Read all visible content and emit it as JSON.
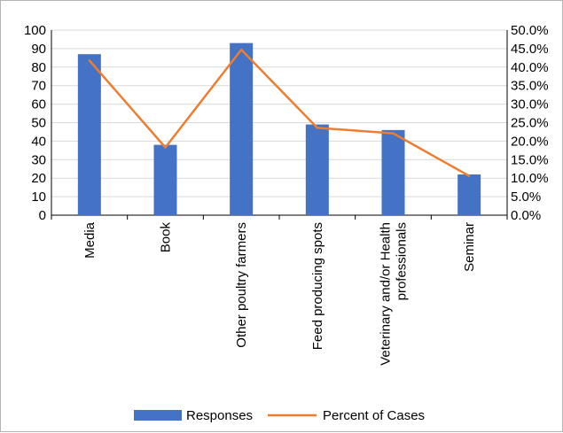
{
  "chart_data": {
    "type": "bar",
    "title": "",
    "categories": [
      [
        "Media"
      ],
      [
        "Book"
      ],
      [
        "Other poultry farmers"
      ],
      [
        "Feed producing spots"
      ],
      [
        "Veterinary and/or Health",
        "professionals"
      ],
      [
        "Seminar"
      ]
    ],
    "series": [
      {
        "name": "Responses",
        "type": "bar",
        "axis": "left",
        "color": "#4472c4",
        "values": [
          87,
          38,
          93,
          49,
          46,
          22
        ]
      },
      {
        "name": "Percent of Cases",
        "type": "line",
        "axis": "right",
        "color": "#ed7d31",
        "values": [
          41.8,
          18.3,
          44.7,
          23.6,
          22.1,
          10.6
        ]
      }
    ],
    "ylim": [
      0,
      100
    ],
    "y_ticks": [
      0,
      10,
      20,
      30,
      40,
      50,
      60,
      70,
      80,
      90,
      100
    ],
    "y2lim": [
      0,
      50
    ],
    "y2_ticks": [
      "0.0%",
      "5.0%",
      "10.0%",
      "15.0%",
      "20.0%",
      "25.0%",
      "30.0%",
      "35.0%",
      "40.0%",
      "45.0%",
      "50.0%"
    ],
    "grid": true,
    "legend": "bottom",
    "xlabel": "",
    "ylabel": ""
  }
}
